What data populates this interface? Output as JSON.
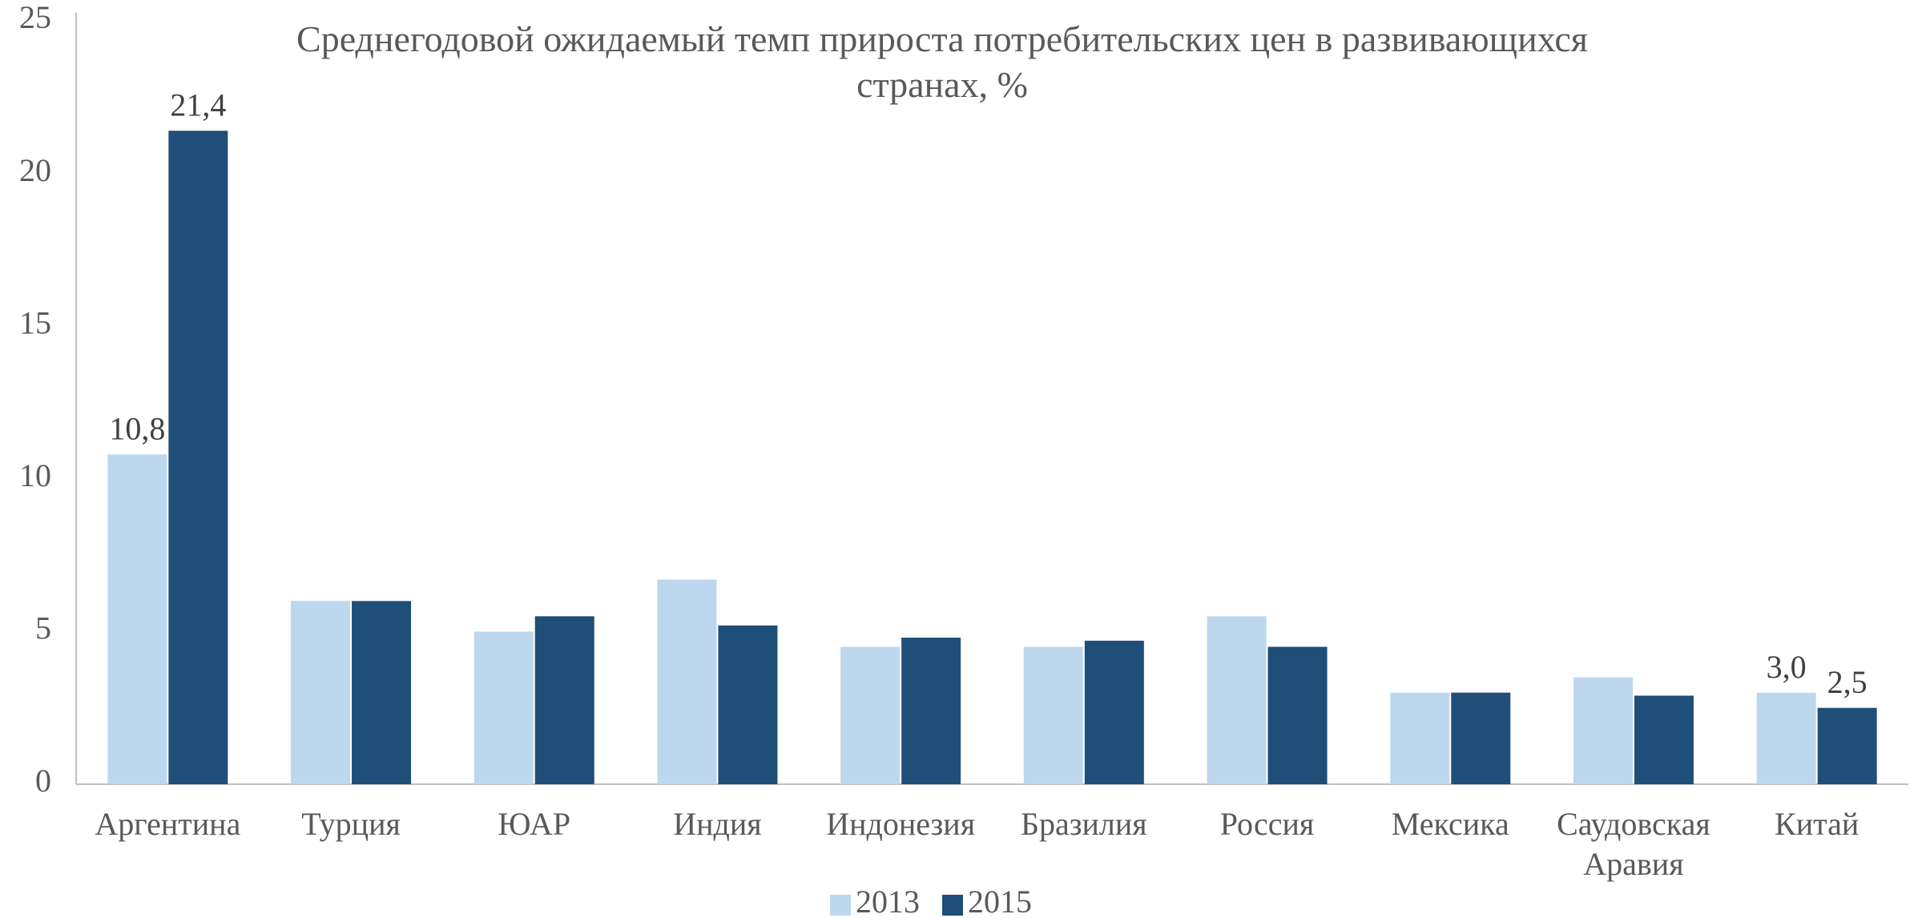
{
  "chart_data": {
    "type": "bar",
    "title": "Среднегодовой ожидаемый темп прироста потребительских цен в развивающихся\nстранах, %",
    "categories": [
      "Аргентина",
      "Турция",
      "ЮАР",
      "Индия",
      "Индонезия",
      "Бразилия",
      "Россия",
      "Мексика",
      "Саудовская\nАравия",
      "Китай"
    ],
    "series": [
      {
        "name": "2013",
        "color": "#bdd7ee",
        "values": [
          10.8,
          6.0,
          5.0,
          6.7,
          4.5,
          4.5,
          5.5,
          3.0,
          3.5,
          3.0
        ],
        "value_labels": [
          "10,8",
          null,
          null,
          null,
          null,
          null,
          null,
          null,
          null,
          "3,0"
        ]
      },
      {
        "name": "2015",
        "color": "#1f4e79",
        "values": [
          21.4,
          6.0,
          5.5,
          5.2,
          4.8,
          4.7,
          4.5,
          3.0,
          2.9,
          2.5
        ],
        "value_labels": [
          "21,4",
          null,
          null,
          null,
          null,
          null,
          null,
          null,
          null,
          "2,5"
        ]
      }
    ],
    "ylim": [
      0,
      25
    ],
    "yticks": [
      0,
      5,
      10,
      15,
      20,
      25
    ],
    "grid": false,
    "legend": "bottom"
  }
}
